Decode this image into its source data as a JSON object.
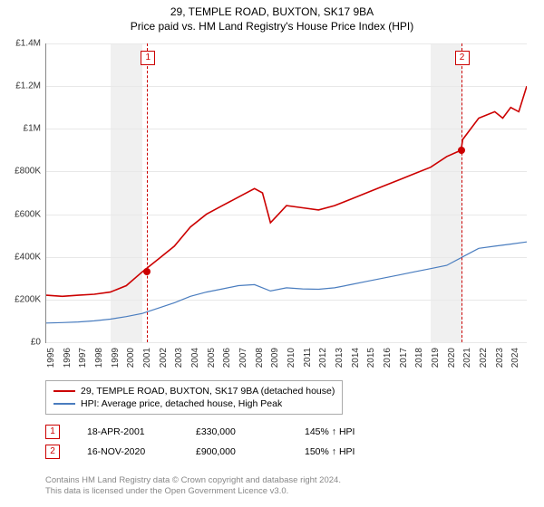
{
  "title": "29, TEMPLE ROAD, BUXTON, SK17 9BA",
  "subtitle": "Price paid vs. HM Land Registry's House Price Index (HPI)",
  "chart": {
    "type": "line",
    "ylim": [
      0,
      1400000
    ],
    "ytick_step": 200000,
    "yticks_labels": [
      "£0",
      "£200K",
      "£400K",
      "£600K",
      "£800K",
      "£1M",
      "£1.2M",
      "£1.4M"
    ],
    "xlim": [
      1995,
      2025
    ],
    "xticks": [
      1995,
      1996,
      1997,
      1998,
      1999,
      2000,
      2001,
      2002,
      2003,
      2004,
      2005,
      2006,
      2007,
      2008,
      2009,
      2010,
      2011,
      2012,
      2013,
      2014,
      2015,
      2016,
      2017,
      2018,
      2019,
      2020,
      2021,
      2022,
      2023,
      2024
    ],
    "background_color": "#ffffff",
    "grid_color": "#e8e8e8",
    "bands": [
      {
        "from": 1999,
        "to": 2001,
        "color": "#f0f0f0"
      },
      {
        "from": 2019,
        "to": 2021,
        "color": "#f0f0f0"
      }
    ],
    "series": [
      {
        "id": "price_paid",
        "label": "29, TEMPLE ROAD, BUXTON, SK17 9BA (detached house)",
        "color": "#cc0000",
        "line_width": 1.6,
        "data": [
          [
            1995,
            220000
          ],
          [
            1996,
            215000
          ],
          [
            1997,
            220000
          ],
          [
            1998,
            225000
          ],
          [
            1999,
            235000
          ],
          [
            2000,
            265000
          ],
          [
            2001,
            330000
          ],
          [
            2002,
            390000
          ],
          [
            2003,
            450000
          ],
          [
            2004,
            540000
          ],
          [
            2005,
            600000
          ],
          [
            2006,
            640000
          ],
          [
            2007,
            680000
          ],
          [
            2008,
            720000
          ],
          [
            2008.5,
            700000
          ],
          [
            2009,
            560000
          ],
          [
            2009.5,
            600000
          ],
          [
            2010,
            640000
          ],
          [
            2011,
            630000
          ],
          [
            2012,
            620000
          ],
          [
            2013,
            640000
          ],
          [
            2014,
            670000
          ],
          [
            2015,
            700000
          ],
          [
            2016,
            730000
          ],
          [
            2017,
            760000
          ],
          [
            2018,
            790000
          ],
          [
            2019,
            820000
          ],
          [
            2020,
            870000
          ],
          [
            2020.9,
            900000
          ],
          [
            2021,
            950000
          ],
          [
            2022,
            1050000
          ],
          [
            2023,
            1080000
          ],
          [
            2023.5,
            1050000
          ],
          [
            2024,
            1100000
          ],
          [
            2024.5,
            1080000
          ],
          [
            2025,
            1200000
          ]
        ]
      },
      {
        "id": "hpi",
        "label": "HPI: Average price, detached house, High Peak",
        "color": "#4a7dbf",
        "line_width": 1.2,
        "data": [
          [
            1995,
            90000
          ],
          [
            1996,
            92000
          ],
          [
            1997,
            95000
          ],
          [
            1998,
            100000
          ],
          [
            1999,
            108000
          ],
          [
            2000,
            120000
          ],
          [
            2001,
            135000
          ],
          [
            2002,
            160000
          ],
          [
            2003,
            185000
          ],
          [
            2004,
            215000
          ],
          [
            2005,
            235000
          ],
          [
            2006,
            250000
          ],
          [
            2007,
            265000
          ],
          [
            2008,
            270000
          ],
          [
            2009,
            240000
          ],
          [
            2010,
            255000
          ],
          [
            2011,
            250000
          ],
          [
            2012,
            248000
          ],
          [
            2013,
            255000
          ],
          [
            2014,
            270000
          ],
          [
            2015,
            285000
          ],
          [
            2016,
            300000
          ],
          [
            2017,
            315000
          ],
          [
            2018,
            330000
          ],
          [
            2019,
            345000
          ],
          [
            2020,
            360000
          ],
          [
            2021,
            400000
          ],
          [
            2022,
            440000
          ],
          [
            2023,
            450000
          ],
          [
            2024,
            460000
          ],
          [
            2025,
            470000
          ]
        ]
      }
    ],
    "vlines": [
      {
        "x": 2001.3,
        "label": "1",
        "color": "#cc0000"
      },
      {
        "x": 2020.9,
        "label": "2",
        "color": "#cc0000"
      }
    ],
    "points": [
      {
        "x": 2001.3,
        "y": 330000,
        "color": "#cc0000"
      },
      {
        "x": 2020.9,
        "y": 900000,
        "color": "#cc0000"
      }
    ]
  },
  "legend": {
    "series1": "29, TEMPLE ROAD, BUXTON, SK17 9BA (detached house)",
    "series2": "HPI: Average price, detached house, High Peak"
  },
  "transactions": [
    {
      "marker": "1",
      "date": "18-APR-2001",
      "price": "£330,000",
      "delta": "145% ↑ HPI"
    },
    {
      "marker": "2",
      "date": "16-NOV-2020",
      "price": "£900,000",
      "delta": "150% ↑ HPI"
    }
  ],
  "footer": {
    "line1": "Contains HM Land Registry data © Crown copyright and database right 2024.",
    "line2": "This data is licensed under the Open Government Licence v3.0."
  }
}
